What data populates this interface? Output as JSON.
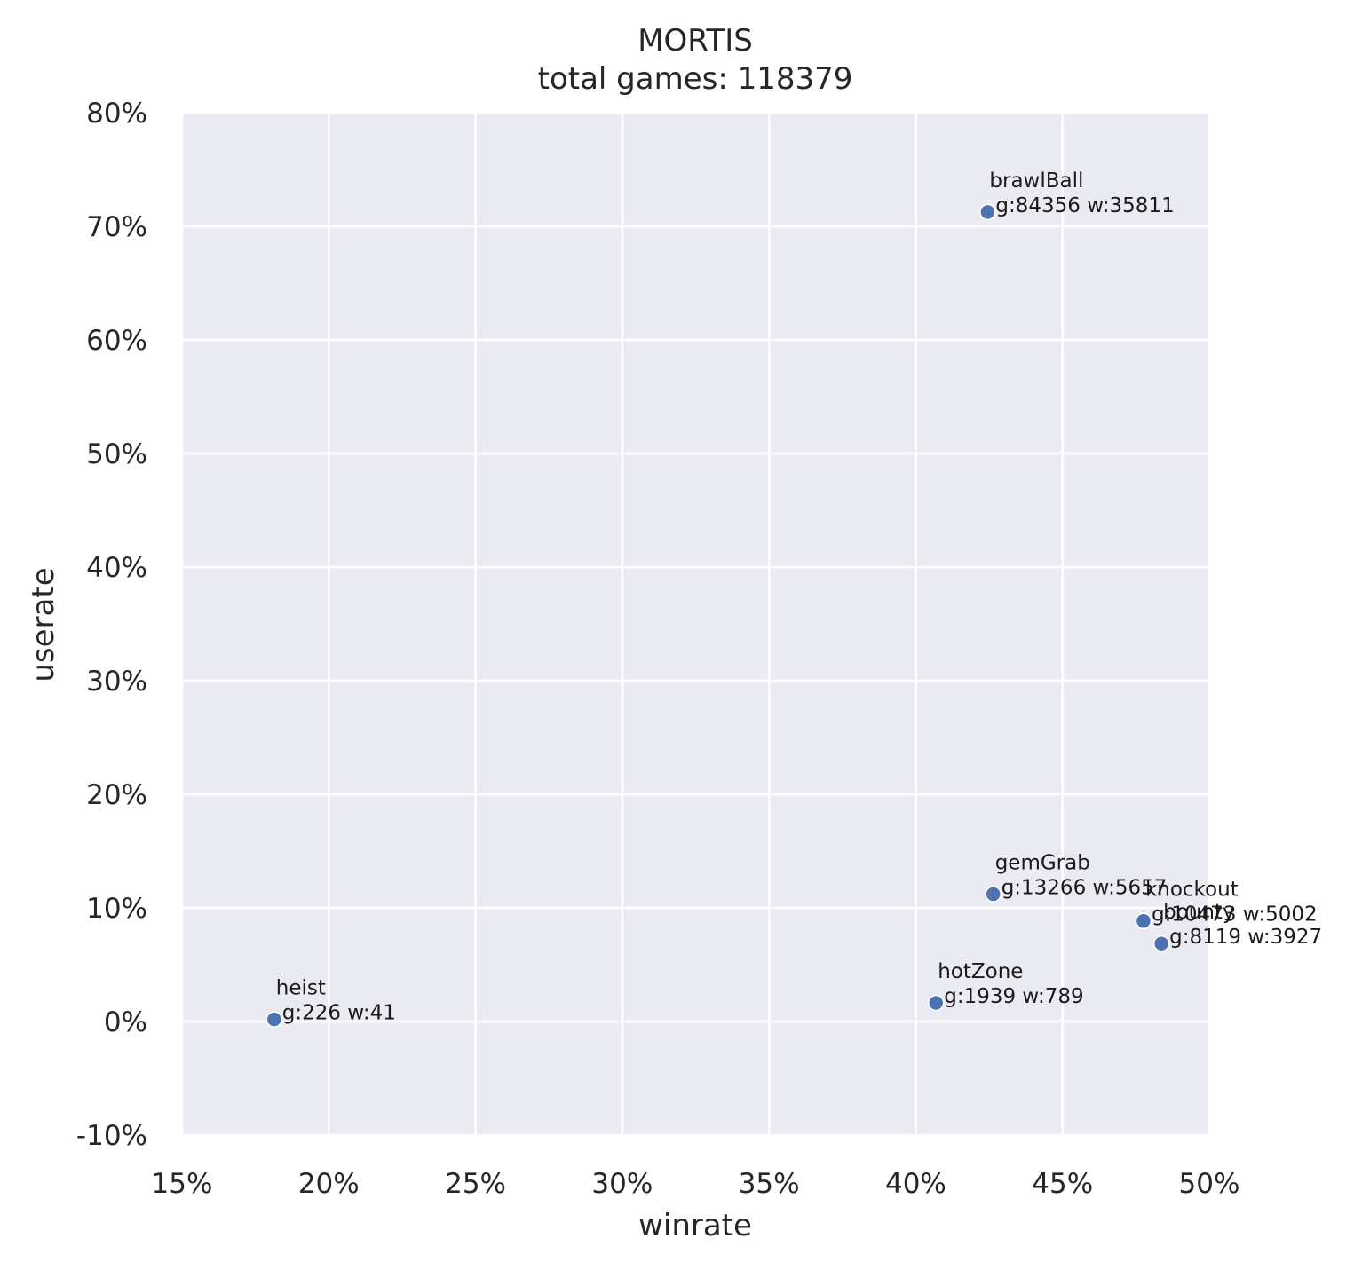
{
  "chart_data": {
    "type": "scatter",
    "title": "MORTIS",
    "subtitle": "total games: 118379",
    "xlabel": "winrate",
    "ylabel": "userate",
    "xlim": [
      0.15,
      0.5
    ],
    "ylim": [
      -0.1,
      0.8
    ],
    "x_ticks": [
      0.15,
      0.2,
      0.25,
      0.3,
      0.35,
      0.4,
      0.45,
      0.5
    ],
    "x_tick_labels": [
      "15%",
      "20%",
      "25%",
      "30%",
      "35%",
      "40%",
      "45%",
      "50%"
    ],
    "y_ticks": [
      -0.1,
      0.0,
      0.1,
      0.2,
      0.3,
      0.4,
      0.5,
      0.6,
      0.7,
      0.8
    ],
    "y_tick_labels": [
      "-10%",
      "0%",
      "10%",
      "20%",
      "30%",
      "40%",
      "50%",
      "60%",
      "70%",
      "80%"
    ],
    "grid": true,
    "colors": {
      "background": "#eaeaf2",
      "grid": "#ffffff",
      "point": "#4c72b0"
    },
    "points": [
      {
        "name": "brawlBall",
        "stats": "g:84356 w:35811",
        "x": 0.4245,
        "y": 0.7126
      },
      {
        "name": "gemGrab",
        "stats": "g:13266 w:5657",
        "x": 0.4264,
        "y": 0.1121
      },
      {
        "name": "knockout",
        "stats": "g:10473 w:5002",
        "x": 0.4776,
        "y": 0.0885
      },
      {
        "name": "bounty",
        "stats": "g:8119 w:3927",
        "x": 0.4837,
        "y": 0.0686
      },
      {
        "name": "hotZone",
        "stats": "g:1939 w:789",
        "x": 0.4069,
        "y": 0.0164
      },
      {
        "name": "heist",
        "stats": "g:226 w:41",
        "x": 0.1814,
        "y": 0.0019
      }
    ]
  }
}
